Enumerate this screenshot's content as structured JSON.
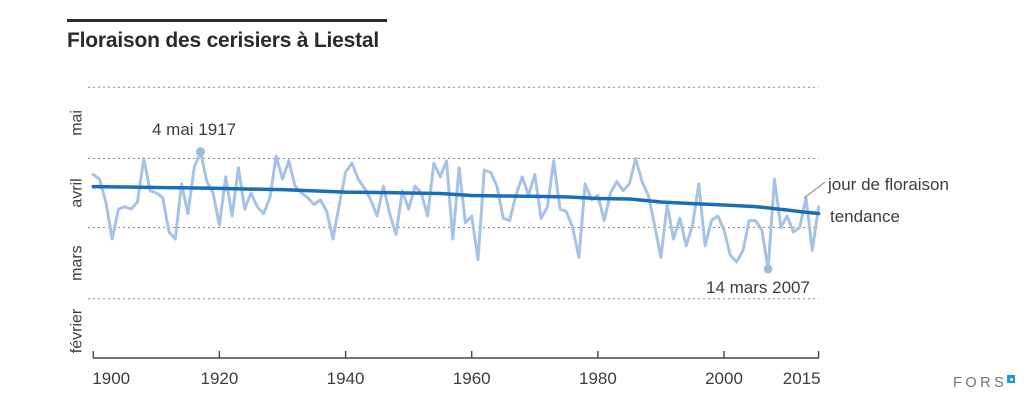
{
  "title": "Floraison des cerisiers à Liestal",
  "annotations": {
    "max_label": "4 mai 1917",
    "min_label": "14 mars 2007"
  },
  "legend": {
    "series_label": "jour de floraison",
    "trend_label": "tendance"
  },
  "logo": {
    "text": "FORS"
  },
  "colors": {
    "series": "#a6c3e6",
    "marker": "#9cbde2",
    "trend": "#1a6eb8",
    "grid": "#8a8a8a",
    "axis": "#47474b",
    "text": "#3d3d3d",
    "title": "#2a2a2a",
    "leader": "#999999",
    "logo_text": "#74747a",
    "logo_mark": "#1e97d4"
  },
  "chart_data": {
    "type": "line",
    "title": "Floraison des cerisiers à Liestal",
    "x_range": [
      1900,
      2015
    ],
    "x_ticks": [
      1900,
      1920,
      1940,
      1960,
      1980,
      2000,
      2015
    ],
    "grid": "horizontal-dashed",
    "legend_position": "right-of-line-ends",
    "y_value_encoding": "days relative to 1 April (0 = 1 avril, 30 = 1 mai, -31 = 1 mars)",
    "y_axis_months": [
      {
        "label": "mai",
        "gridline_day": 61,
        "label_day": 45.5
      },
      {
        "label": "avril",
        "gridline_day": 30,
        "label_day": 15
      },
      {
        "label": "mars",
        "gridline_day": 0,
        "label_day": -15.5
      },
      {
        "label": "février",
        "gridline_day": -31,
        "label_day": -45
      }
    ],
    "series": [
      {
        "name": "jour de floraison",
        "start_year": 1900,
        "values": [
          23,
          21,
          11,
          -5,
          8,
          9,
          8,
          11,
          30,
          16,
          15,
          13,
          -2,
          -5,
          19,
          6,
          26,
          33,
          20,
          15,
          1,
          22,
          5,
          26,
          8,
          15,
          9,
          6,
          13,
          31,
          21,
          29,
          18,
          15,
          13,
          10,
          12,
          7,
          -5,
          10,
          24,
          28,
          21,
          17,
          12,
          5,
          18,
          6,
          -3,
          16,
          8,
          18,
          15,
          5,
          28,
          22,
          29,
          -5,
          26,
          2,
          5,
          -14,
          25,
          24,
          18,
          4,
          3,
          14,
          22,
          14,
          23,
          4,
          9,
          29,
          8,
          7,
          0,
          -13,
          19,
          12,
          14,
          3,
          15,
          20,
          16,
          19,
          30,
          20,
          14,
          1,
          -13,
          10,
          -5,
          4,
          -8,
          1,
          19,
          -8,
          3,
          5,
          -1,
          -12,
          -15,
          -10,
          3,
          3,
          -1,
          -18,
          21,
          0,
          5,
          -2,
          0,
          13,
          -10,
          9
        ]
      },
      {
        "name": "tendance",
        "points": [
          [
            1900,
            17.8
          ],
          [
            1905,
            17.6
          ],
          [
            1910,
            17.4
          ],
          [
            1915,
            17.2
          ],
          [
            1920,
            17.0
          ],
          [
            1925,
            16.7
          ],
          [
            1930,
            16.5
          ],
          [
            1935,
            15.9
          ],
          [
            1940,
            15.4
          ],
          [
            1945,
            15.2
          ],
          [
            1950,
            15.0
          ],
          [
            1955,
            14.8
          ],
          [
            1960,
            13.9
          ],
          [
            1965,
            13.7
          ],
          [
            1970,
            13.5
          ],
          [
            1975,
            13.3
          ],
          [
            1980,
            12.6
          ],
          [
            1985,
            12.4
          ],
          [
            1990,
            11.1
          ],
          [
            1995,
            10.4
          ],
          [
            2000,
            9.8
          ],
          [
            2005,
            9.1
          ],
          [
            2010,
            7.6
          ],
          [
            2013,
            6.6
          ],
          [
            2015,
            6.1
          ]
        ]
      }
    ],
    "markers": [
      {
        "year": 1917,
        "day": 33,
        "date": "4 mai 1917"
      },
      {
        "year": 2007,
        "day": -18,
        "date": "14 mars 2007"
      }
    ]
  }
}
